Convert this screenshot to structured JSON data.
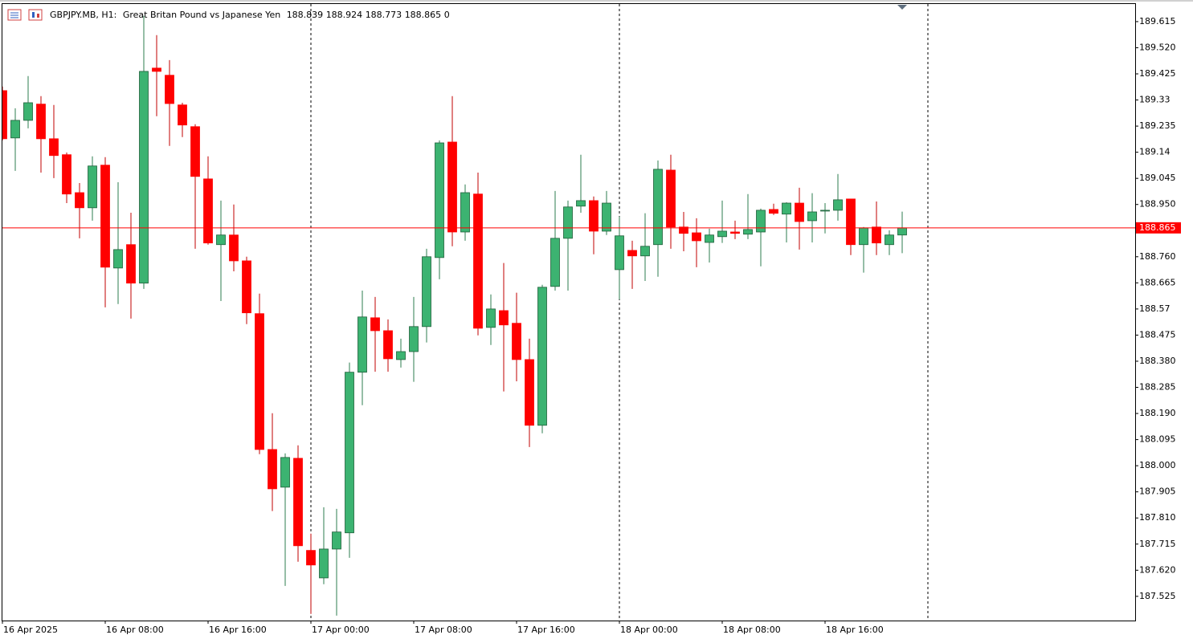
{
  "chart_data": {
    "type": "candlestick",
    "header": {
      "symbol": "GBPJPY.MB, H1:",
      "description": "Great Britan Pound vs Japanese Yen",
      "volume": 0
    },
    "categories": [
      "16 Apr 2025",
      null,
      null,
      null,
      null,
      null,
      null,
      null,
      "16 Apr 08:00",
      null,
      null,
      null,
      null,
      null,
      null,
      null,
      "16 Apr 16:00",
      null,
      null,
      null,
      null,
      null,
      null,
      null,
      "17 Apr 00:00",
      null,
      null,
      null,
      null,
      null,
      null,
      null,
      "17 Apr 08:00",
      null,
      null,
      null,
      null,
      null,
      null,
      null,
      "17 Apr 16:00",
      null,
      null,
      null,
      null,
      null,
      null,
      null,
      "18 Apr 00:00",
      null,
      null,
      null,
      null,
      null,
      null,
      null,
      "18 Apr 08:00",
      null,
      null,
      null,
      null,
      null,
      null,
      null,
      "18 Apr 16:00",
      null,
      null,
      null,
      null,
      null,
      null
    ],
    "open": [
      189.364,
      189.192,
      189.256,
      189.315,
      189.189,
      189.131,
      188.993,
      188.938,
      189.093,
      188.719,
      188.804,
      188.664,
      189.446,
      189.42,
      189.312,
      189.233,
      189.043,
      188.804,
      188.839,
      188.745,
      188.553,
      188.059,
      187.922,
      188.027,
      187.692,
      187.592,
      187.697,
      187.756,
      188.34,
      188.538,
      188.491,
      188.386,
      188.415,
      188.506,
      188.757,
      189.177,
      188.85,
      188.988,
      188.503,
      188.564,
      188.518,
      188.386,
      188.147,
      188.652,
      188.827,
      188.944,
      188.964,
      188.853,
      188.713,
      188.783,
      188.763,
      188.804,
      189.075,
      188.868,
      188.847,
      188.812,
      188.833,
      188.85,
      188.842,
      188.85,
      188.932,
      188.915,
      188.955,
      188.891,
      188.926,
      188.929,
      188.97,
      188.804,
      188.868,
      188.804,
      188.839
    ],
    "high": [
      189.379,
      189.3,
      189.417,
      189.344,
      189.312,
      189.139,
      189.028,
      189.125,
      189.122,
      189.031,
      188.92,
      189.636,
      189.566,
      189.475,
      189.32,
      189.242,
      189.125,
      188.964,
      188.95,
      188.76,
      188.626,
      188.191,
      188.045,
      188.074,
      187.753,
      187.849,
      187.843,
      188.375,
      188.637,
      188.614,
      188.532,
      188.462,
      188.614,
      188.789,
      189.183,
      189.344,
      189.023,
      189.066,
      188.623,
      188.737,
      188.629,
      188.462,
      188.658,
      188.999,
      188.964,
      189.131,
      188.979,
      188.999,
      188.906,
      188.818,
      188.918,
      189.11,
      189.131,
      188.923,
      188.9,
      188.862,
      188.964,
      188.891,
      188.988,
      188.935,
      188.953,
      188.958,
      189.011,
      188.991,
      188.955,
      189.061,
      188.97,
      188.868,
      188.961,
      188.856,
      188.924
    ],
    "low": [
      189.183,
      189.072,
      189.227,
      189.066,
      189.046,
      188.955,
      188.827,
      188.891,
      188.576,
      188.588,
      188.535,
      188.643,
      189.271,
      189.163,
      189.195,
      188.789,
      188.804,
      188.599,
      188.707,
      188.515,
      188.042,
      187.835,
      187.563,
      187.651,
      187.461,
      187.569,
      187.455,
      187.665,
      188.22,
      188.342,
      188.342,
      188.357,
      188.305,
      188.448,
      188.678,
      188.798,
      188.818,
      188.474,
      188.439,
      188.27,
      188.307,
      188.068,
      188.118,
      188.637,
      188.637,
      188.92,
      188.769,
      188.839,
      188.605,
      188.643,
      188.672,
      188.687,
      188.789,
      188.78,
      188.722,
      188.739,
      188.81,
      188.824,
      188.824,
      188.725,
      188.912,
      188.812,
      188.786,
      188.812,
      188.845,
      188.891,
      188.766,
      188.702,
      188.766,
      188.766,
      188.773
    ],
    "close": [
      189.189,
      189.256,
      189.32,
      189.189,
      189.128,
      188.988,
      188.938,
      189.09,
      188.722,
      188.786,
      188.664,
      189.434,
      189.434,
      189.317,
      189.239,
      189.052,
      188.81,
      188.839,
      188.745,
      188.556,
      188.059,
      187.916,
      188.03,
      187.709,
      187.639,
      187.697,
      187.759,
      188.34,
      188.541,
      188.491,
      188.389,
      188.415,
      188.506,
      188.76,
      189.174,
      188.85,
      188.993,
      188.5,
      188.57,
      188.512,
      188.386,
      188.147,
      188.649,
      188.827,
      188.941,
      188.964,
      188.853,
      188.955,
      188.836,
      188.763,
      188.798,
      189.078,
      188.868,
      188.845,
      188.818,
      188.839,
      188.853,
      188.845,
      188.859,
      188.929,
      188.918,
      188.955,
      188.888,
      188.923,
      188.929,
      188.967,
      188.804,
      188.865,
      188.81,
      188.839,
      188.865
    ],
    "up_color": "#3cb371",
    "down_color": "#ff0000",
    "price_line_color": "#ff0000",
    "ylim": [
      187.437,
      189.679
    ],
    "yticks": [
      189.615,
      {
        "value": 189.52,
        "label": "189.520"
      },
      189.425,
      189.33,
      189.235,
      189.14,
      189.045,
      {
        "value": 188.95,
        "label": "188.950"
      },
      {
        "value": 188.76,
        "label": "188.760"
      },
      188.665,
      188.57,
      188.475,
      {
        "value": 188.38,
        "label": "188.380"
      },
      188.285,
      {
        "value": 188.19,
        "label": "188.190"
      },
      188.095,
      {
        "value": 188,
        "label": "188.000"
      },
      187.905,
      {
        "value": 187.81,
        "label": "187.810"
      },
      187.715,
      {
        "value": 187.62,
        "label": "187.620"
      },
      187.525
    ],
    "grid": false
  }
}
